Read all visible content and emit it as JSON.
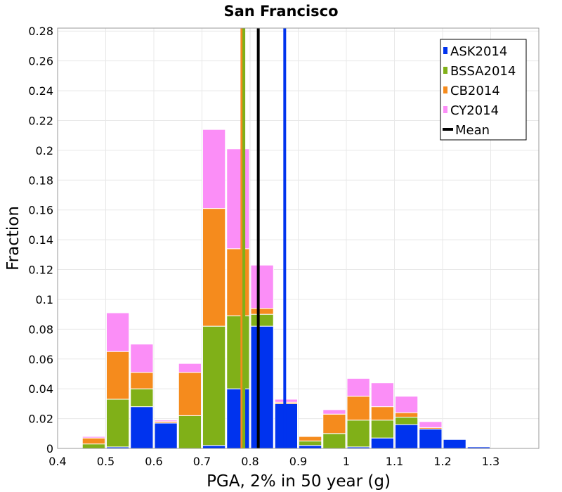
{
  "chart_data": {
    "type": "bar",
    "stacked": true,
    "title": "San Francisco",
    "xlabel": "PGA, 2% in 50 year (g)",
    "ylabel": "Fraction",
    "xlim": [
      0.4,
      1.4
    ],
    "ylim": [
      0,
      0.282
    ],
    "x_ticks": [
      "0.4",
      "0.5",
      "0.6",
      "0.7",
      "0.8",
      "0.9",
      "1",
      "1.1",
      "1.2",
      "1.3"
    ],
    "y_ticks": [
      "0",
      "0.02",
      "0.04",
      "0.06",
      "0.08",
      "0.1",
      "0.12",
      "0.14",
      "0.16",
      "0.18",
      "0.2",
      "0.22",
      "0.24",
      "0.26",
      "0.28"
    ],
    "bin_width": 0.05,
    "bin_centers": [
      0.475,
      0.525,
      0.575,
      0.625,
      0.675,
      0.725,
      0.775,
      0.825,
      0.875,
      0.925,
      0.975,
      1.025,
      1.075,
      1.125,
      1.175,
      1.225,
      1.275,
      1.325
    ],
    "series": [
      {
        "name": "ASK2014",
        "color": "#0033ee",
        "values": [
          0.0,
          0.001,
          0.028,
          0.017,
          0.0,
          0.002,
          0.04,
          0.082,
          0.03,
          0.002,
          0.0,
          0.001,
          0.007,
          0.016,
          0.013,
          0.006,
          0.001,
          0.0
        ]
      },
      {
        "name": "BSSA2014",
        "color": "#80b018",
        "values": [
          0.003,
          0.032,
          0.012,
          0.0,
          0.022,
          0.08,
          0.049,
          0.008,
          0.0,
          0.003,
          0.01,
          0.018,
          0.012,
          0.005,
          0.0,
          0.0,
          0.0,
          0.0
        ]
      },
      {
        "name": "CB2014",
        "color": "#f58b1d",
        "values": [
          0.004,
          0.032,
          0.011,
          0.001,
          0.029,
          0.079,
          0.045,
          0.004,
          0.001,
          0.003,
          0.013,
          0.016,
          0.009,
          0.003,
          0.001,
          0.0,
          0.0,
          0.0
        ]
      },
      {
        "name": "CY2014",
        "color": "#fb8ef7",
        "values": [
          0.001,
          0.026,
          0.019,
          0.001,
          0.006,
          0.053,
          0.067,
          0.029,
          0.002,
          0.0,
          0.003,
          0.012,
          0.016,
          0.011,
          0.004,
          0.0,
          0.0,
          0.0
        ]
      }
    ],
    "mean_lines": [
      {
        "name": "ASK2014",
        "x": 0.872,
        "color": "#0033ee"
      },
      {
        "name": "CB2014",
        "x": 0.783,
        "color": "#f58b1d"
      },
      {
        "name": "BSSA2014",
        "x": 0.787,
        "color": "#80b018"
      },
      {
        "name": "Mean",
        "x": 0.817,
        "color": "#000000"
      }
    ],
    "legend": {
      "position": "top-right",
      "entries": [
        {
          "label": "ASK2014",
          "color": "#0033ee",
          "kind": "box"
        },
        {
          "label": "BSSA2014",
          "color": "#80b018",
          "kind": "box"
        },
        {
          "label": "CB2014",
          "color": "#f58b1d",
          "kind": "box"
        },
        {
          "label": "CY2014",
          "color": "#fb8ef7",
          "kind": "box"
        },
        {
          "label": "Mean",
          "color": "#000000",
          "kind": "line"
        }
      ]
    },
    "grid": true
  }
}
